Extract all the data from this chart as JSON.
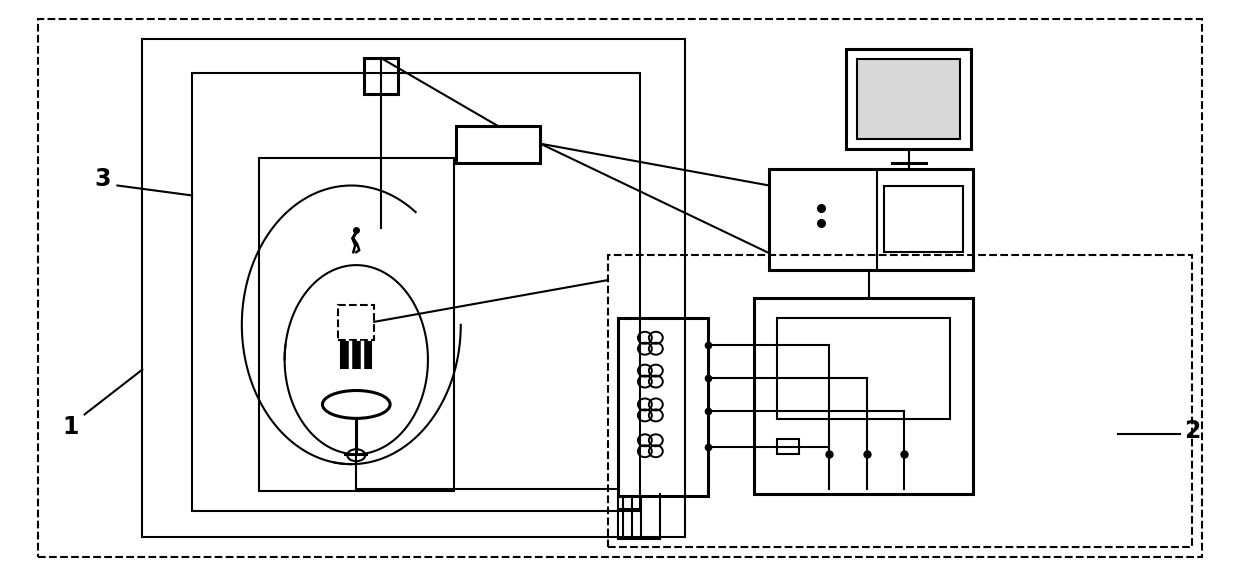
{
  "bg_color": "#ffffff",
  "line_color": "#000000",
  "fig_width": 12.4,
  "fig_height": 5.79,
  "label_1": "1",
  "label_2": "2",
  "label_3": "3",
  "lw_main": 1.5,
  "lw_thick": 2.2,
  "lw_dash": 1.5
}
